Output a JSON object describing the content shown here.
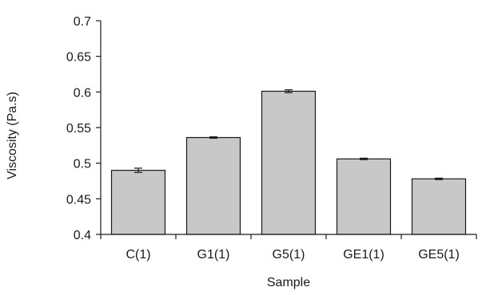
{
  "chart_data": {
    "type": "bar",
    "title": "",
    "xlabel": "Sample",
    "ylabel": "Viscosity (Pa.s)",
    "categories": [
      "C(1)",
      "G1(1)",
      "G5(1)",
      "GE1(1)",
      "GE5(1)"
    ],
    "values": [
      0.49,
      0.536,
      0.601,
      0.506,
      0.478
    ],
    "errors": [
      0.003,
      0.001,
      0.002,
      0.001,
      0.001
    ],
    "ylim": [
      0.4,
      0.7
    ],
    "yticks": [
      0.4,
      0.45,
      0.5,
      0.55,
      0.6,
      0.65,
      0.7
    ],
    "ytick_labels": [
      "0.4",
      "0.45",
      "0.5",
      "0.55",
      "0.6",
      "0.65",
      "0.7"
    ],
    "grid": false,
    "legend": "none",
    "bar_color": "#c8c8c8",
    "bar_edge_color": "#1a1a1a",
    "axis_color": "#1a1a1a"
  }
}
